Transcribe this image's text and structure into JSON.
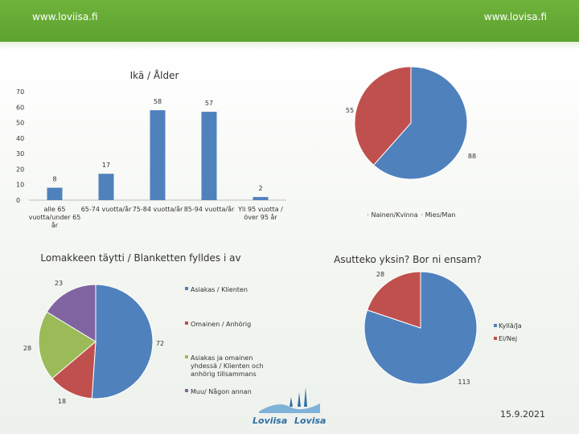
{
  "header": {
    "left_link": "www.loviisa.fi",
    "right_link": "www.lovisa.fi"
  },
  "footer": {
    "date": "15.9.2021",
    "logo_text": "Loviisa",
    "logo_sub": "Lovisa"
  },
  "colors": {
    "blue": "#4f81bd",
    "red": "#c0504d",
    "green": "#9bbb59",
    "purple": "#8064a2",
    "header": "#66ab35"
  },
  "chart_data": [
    {
      "type": "bar",
      "title": "Ikä / Ålder",
      "categories": [
        "alle 65 vuotta/under 65 år",
        "65-74 vuotta/år",
        "75-84 vuotta/år",
        "85-94 vuotta/år",
        "Yli 95 vuotta / över 95 år"
      ],
      "category_lines": [
        [
          "alle 65",
          "vuotta/under 65",
          "år"
        ],
        [
          "65-74 vuotta/år"
        ],
        [
          "75-84 vuotta/år"
        ],
        [
          "85-94 vuotta/år"
        ],
        [
          "Yli 95 vuotta /",
          "över 95 år"
        ]
      ],
      "values": [
        8,
        17,
        58,
        57,
        2
      ],
      "ylim": [
        0,
        70
      ],
      "yticks": [
        0,
        10,
        20,
        30,
        40,
        50,
        60,
        70
      ]
    },
    {
      "type": "pie",
      "title": "",
      "labels": [
        "Nainen/Kvinna",
        "Mies/Man"
      ],
      "values": [
        88,
        55
      ],
      "legend_position": "bottom"
    },
    {
      "type": "pie",
      "title": "Lomakkeen täytti / Blanketten fylldes i av",
      "labels": [
        "Asiakas / Klienten",
        "Omainen / Anhörig",
        "Asiakas ja omainen yhdessä / Klienten och anhörig tillsammans",
        "Muu/ Någon annan"
      ],
      "label_lines": [
        [
          "Asiakas / Klienten"
        ],
        [
          "Omainen / Anhörig"
        ],
        [
          "Asiakas ja omainen",
          "yhdessä / Klienten och",
          "anhörig tillsammans"
        ],
        [
          "Muu/ Någon annan"
        ]
      ],
      "values": [
        72,
        18,
        28,
        23
      ],
      "legend_position": "right"
    },
    {
      "type": "pie",
      "title": "Asutteko yksin? Bor ni ensam?",
      "labels": [
        "Kyllä/Ja",
        "Ei/Nej"
      ],
      "values": [
        113,
        28
      ],
      "legend_position": "right"
    }
  ]
}
